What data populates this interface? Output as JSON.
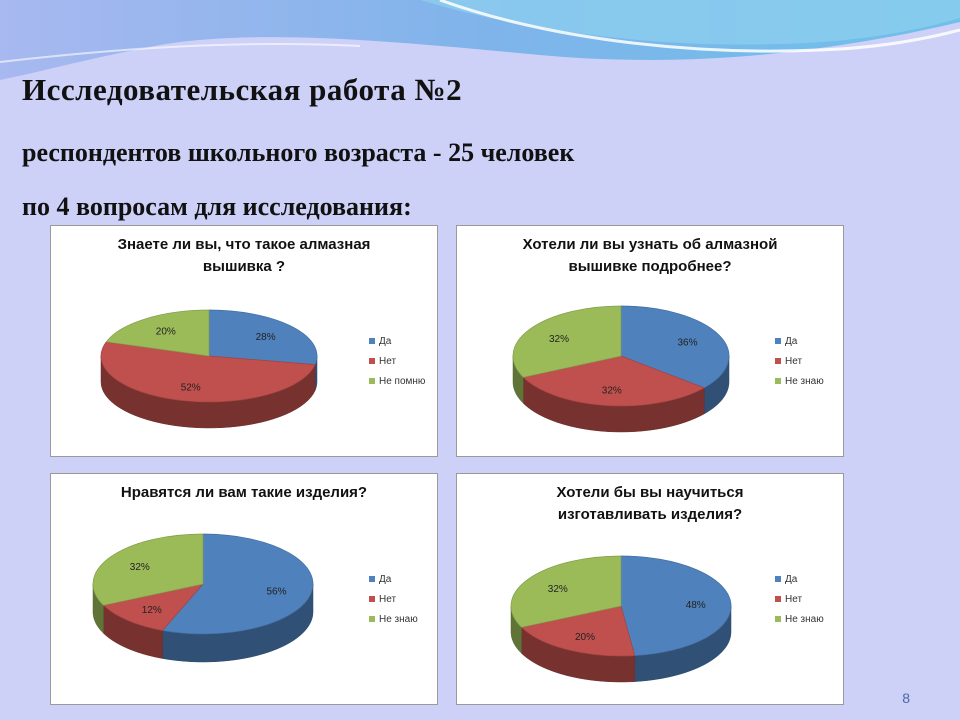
{
  "heading": {
    "line1": "Исследовательская  работа №2",
    "line2": "респондентов  школьного возраста - 25 человек",
    "line3": "по  4  вопросам для  исследования:"
  },
  "slide_number": "8",
  "colors": {
    "blue": "#4f81bd",
    "red": "#c0504d",
    "green": "#9bbb59"
  },
  "chart_data": [
    {
      "type": "pie",
      "title_lines": [
        "Знаете ли вы, что такое алмазная",
        "вышивка ?"
      ],
      "categories": [
        "Да",
        "Нет",
        "Не помню"
      ],
      "values": [
        28,
        52,
        20
      ],
      "labels": [
        "28%",
        "52%",
        "20%"
      ]
    },
    {
      "type": "pie",
      "title_lines": [
        "Хотели ли вы узнать об алмазной",
        "вышивке подробнее?"
      ],
      "categories": [
        "Да",
        "Нет",
        "Не знаю"
      ],
      "values": [
        36,
        32,
        32
      ],
      "labels": [
        "36%",
        "32%",
        "32%"
      ]
    },
    {
      "type": "pie",
      "title_lines": [
        "Нравятся ли вам такие изделия?"
      ],
      "categories": [
        "Да",
        "Нет",
        "Не знаю"
      ],
      "values": [
        56,
        12,
        32
      ],
      "labels": [
        "56%",
        "12%",
        "32%"
      ]
    },
    {
      "type": "pie",
      "title_lines": [
        "Хотели бы вы научиться",
        "изготавливать изделия?"
      ],
      "categories": [
        "Да",
        "Нет",
        "Не знаю"
      ],
      "values": [
        48,
        20,
        32
      ],
      "labels": [
        "48%",
        "20%",
        "32%"
      ]
    }
  ]
}
